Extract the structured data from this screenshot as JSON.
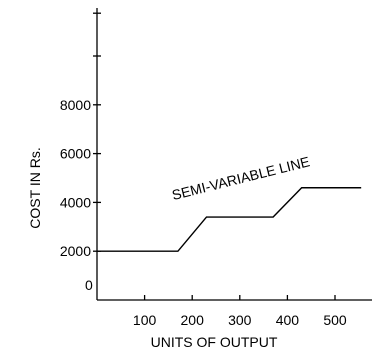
{
  "chart_data": {
    "type": "line",
    "title": "",
    "xlabel": "UNITS  OF OUTPUT",
    "ylabel": "COST IN Rs.",
    "origin_label": "0",
    "x_ticks": [
      100,
      200,
      300,
      400,
      500
    ],
    "y_ticks": [
      2000,
      4000,
      6000,
      8000
    ],
    "xlim": [
      0,
      580
    ],
    "ylim": [
      0,
      12000
    ],
    "grid": false,
    "legend": "none",
    "series": [
      {
        "x": [
          0,
          170,
          230,
          370,
          430,
          555
        ],
        "y": [
          2000,
          2000,
          3400,
          3400,
          4600,
          4600
        ]
      }
    ],
    "annotations": [
      {
        "text": "SEMI-VARIABLE LINE",
        "x": 350,
        "y": 4900
      }
    ]
  }
}
